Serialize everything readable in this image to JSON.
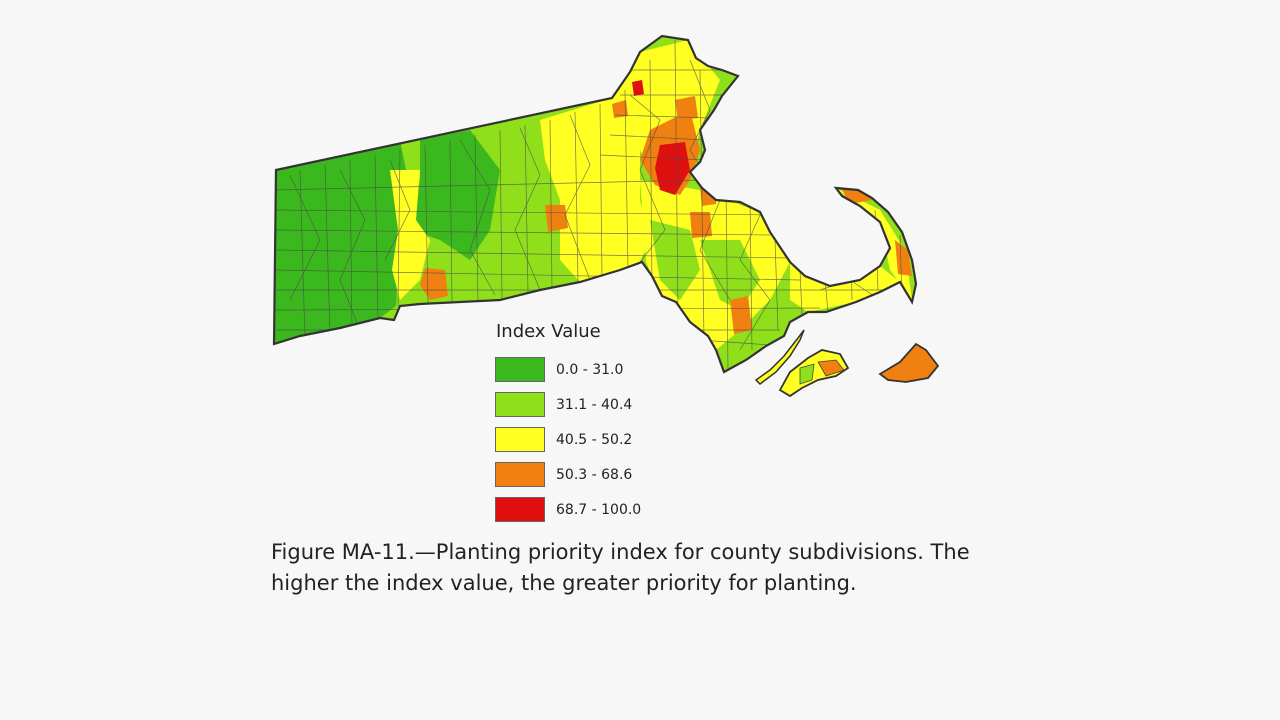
{
  "legend": {
    "title": "Index Value",
    "classes": [
      {
        "label": "0.0 - 31.0",
        "color": "#3cb81f"
      },
      {
        "label": "31.1 - 40.4",
        "color": "#8fe01a"
      },
      {
        "label": "40.5 - 50.2",
        "color": "#ffff22"
      },
      {
        "label": "50.3 - 68.6",
        "color": "#f08010"
      },
      {
        "label": "68.7 - 100.0",
        "color": "#e01010"
      }
    ]
  },
  "caption": "Figure MA-11.—Planting priority index for county subdivisions. The higher the index value, the greater priority for planting.",
  "map": {
    "region": "Massachusetts",
    "outline_color": "#333333"
  }
}
